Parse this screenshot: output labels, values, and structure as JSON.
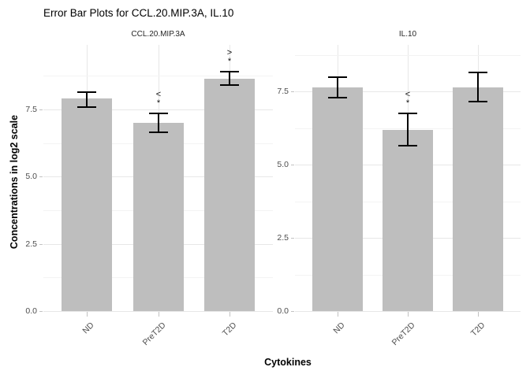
{
  "title": "Error Bar Plots for CCL.20.MIP.3A, IL.10",
  "colors": {
    "background": "#ffffff",
    "bar_fill": "#bebebe",
    "error_bar": "#000000",
    "grid_major": "#e7e7e7",
    "grid_minor": "#f3f3f3",
    "axis_text": "#4d4d4d",
    "tick_mark": "#c2c2c2",
    "strip_text": "#262626"
  },
  "chart_data": {
    "type": "bar",
    "title": "Error Bar Plots for CCL.20.MIP.3A, IL.10",
    "xlabel": "Cytokines",
    "ylabel": "Concentrations in log2 scale",
    "categories": [
      "ND",
      "PreT2D",
      "T2D"
    ],
    "y_ticks": [
      {
        "value": 0.0,
        "label": "0.0"
      },
      {
        "value": 2.5,
        "label": "2.5"
      },
      {
        "value": 5.0,
        "label": "5.0"
      },
      {
        "value": 7.5,
        "label": "7.5"
      }
    ],
    "y_minor_ticks": [
      1.25,
      3.75,
      6.25,
      8.75
    ],
    "grid": true,
    "legend_position": "none",
    "error_bars": true,
    "facets": [
      {
        "label": "CCL.20.MIP.3A",
        "ylim": [
          0,
          9.9
        ],
        "bars": [
          {
            "category": "ND",
            "mean": 7.9,
            "lower": 7.6,
            "upper": 8.15,
            "annotation": []
          },
          {
            "category": "PreT2D",
            "mean": 7.0,
            "lower": 6.65,
            "upper": 7.35,
            "annotation": [
              "<",
              "*"
            ]
          },
          {
            "category": "T2D",
            "mean": 8.65,
            "lower": 8.4,
            "upper": 8.9,
            "annotation": [
              ">",
              "*"
            ]
          }
        ]
      },
      {
        "label": "IL.10",
        "ylim": [
          0,
          9.1
        ],
        "bars": [
          {
            "category": "ND",
            "mean": 7.65,
            "lower": 7.3,
            "upper": 8.0,
            "annotation": []
          },
          {
            "category": "PreT2D",
            "mean": 6.2,
            "lower": 5.65,
            "upper": 6.75,
            "annotation": [
              "<",
              "*"
            ]
          },
          {
            "category": "T2D",
            "mean": 7.65,
            "lower": 7.15,
            "upper": 8.15,
            "annotation": []
          }
        ]
      }
    ]
  }
}
